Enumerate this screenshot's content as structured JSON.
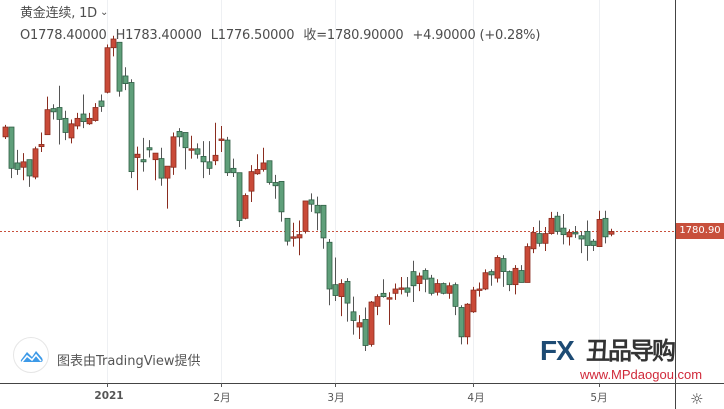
{
  "header": {
    "symbol_title": "黄金连续, 1D",
    "open": "O1778.40000",
    "high": "H1783.40000",
    "low": "L1776.50000",
    "close": "收=1780.90000",
    "change": "+4.90000 (+0.28%)"
  },
  "attribution": "图表由TradingView提供",
  "price_tag": "1780.90",
  "watermark": {
    "brand": "FX168",
    "cn": "丑品导购",
    "url": "www.MPdaogou.com"
  },
  "colors": {
    "up": "#c94a38",
    "up_border": "#8a2c1f",
    "down": "#5f9f7a",
    "down_border": "#2f5e45",
    "last_price_line": "#c8503c",
    "axis": "#555555",
    "grid": "#eef0f3"
  },
  "icons": {
    "settings": "gear-icon",
    "dropdown": "chevron-down-icon",
    "logo": "tradingview-logo-icon"
  },
  "chart_data": {
    "type": "candlestick",
    "title": "黄金连续, 1D",
    "xlabel": "",
    "ylabel": "",
    "ylim": [
      1641.5,
      1993.9
    ],
    "grid": "vertical only at month ticks",
    "up_color_meaning": "red = up, green = down",
    "last_price": 1780.9,
    "x_ticks": [
      {
        "label": "2021",
        "bar": 17
      },
      {
        "label": "2月",
        "bar": 36
      },
      {
        "label": "3月",
        "bar": 55
      },
      {
        "label": "4月",
        "bar": 78
      },
      {
        "label": "5月",
        "bar": 99
      }
    ],
    "candles": [
      [
        1868,
        1879,
        1866,
        1877
      ],
      [
        1877,
        1877,
        1830,
        1839
      ],
      [
        1844,
        1856,
        1833,
        1838
      ],
      [
        1840,
        1853,
        1828,
        1845
      ],
      [
        1847,
        1847,
        1822,
        1832
      ],
      [
        1831,
        1859,
        1829,
        1857
      ],
      [
        1859,
        1872,
        1854,
        1861
      ],
      [
        1870,
        1905,
        1870,
        1893
      ],
      [
        1894,
        1898,
        1884,
        1891
      ],
      [
        1895,
        1915,
        1861,
        1884
      ],
      [
        1885,
        1892,
        1865,
        1872
      ],
      [
        1867,
        1884,
        1862,
        1880
      ],
      [
        1878,
        1890,
        1875,
        1885
      ],
      [
        1889,
        1907,
        1876,
        1882
      ],
      [
        1880,
        1890,
        1879,
        1885
      ],
      [
        1883,
        1899,
        1882,
        1895
      ],
      [
        1901,
        1907,
        1891,
        1896
      ],
      [
        1909,
        1953,
        1908,
        1950
      ],
      [
        1950,
        1961,
        1942,
        1958
      ],
      [
        1955,
        1955,
        1905,
        1910
      ],
      [
        1924,
        1932,
        1911,
        1917
      ],
      [
        1918,
        1921,
        1830,
        1836
      ],
      [
        1849,
        1859,
        1819,
        1852
      ],
      [
        1847,
        1867,
        1836,
        1845
      ],
      [
        1858,
        1865,
        1849,
        1856
      ],
      [
        1847,
        1853,
        1828,
        1853
      ],
      [
        1848,
        1858,
        1823,
        1830
      ],
      [
        1830,
        1841,
        1802,
        1841
      ],
      [
        1840,
        1872,
        1833,
        1868
      ],
      [
        1873,
        1876,
        1859,
        1868
      ],
      [
        1872,
        1872,
        1838,
        1858
      ],
      [
        1857,
        1869,
        1848,
        1857
      ],
      [
        1857,
        1862,
        1848,
        1852
      ],
      [
        1850,
        1864,
        1830,
        1845
      ],
      [
        1845,
        1864,
        1833,
        1839
      ],
      [
        1846,
        1881,
        1842,
        1851
      ],
      [
        1866,
        1878,
        1854,
        1866
      ],
      [
        1865,
        1868,
        1832,
        1835
      ],
      [
        1839,
        1848,
        1831,
        1835
      ],
      [
        1835,
        1835,
        1785,
        1791
      ],
      [
        1793,
        1816,
        1792,
        1814
      ],
      [
        1818,
        1842,
        1808,
        1836
      ],
      [
        1834,
        1852,
        1833,
        1838
      ],
      [
        1838,
        1858,
        1836,
        1844
      ],
      [
        1846,
        1846,
        1824,
        1826
      ],
      [
        1826,
        1833,
        1811,
        1823
      ],
      [
        1827,
        1827,
        1790,
        1799
      ],
      [
        1793,
        1793,
        1768,
        1772
      ],
      [
        1776,
        1789,
        1767,
        1776
      ],
      [
        1775,
        1791,
        1759,
        1778
      ],
      [
        1781,
        1809,
        1779,
        1809
      ],
      [
        1810,
        1816,
        1799,
        1806
      ],
      [
        1805,
        1813,
        1782,
        1798
      ],
      [
        1805,
        1805,
        1765,
        1775
      ],
      [
        1771,
        1774,
        1713,
        1728
      ],
      [
        1732,
        1757,
        1717,
        1722
      ],
      [
        1721,
        1737,
        1703,
        1733
      ],
      [
        1735,
        1738,
        1698,
        1715
      ],
      [
        1707,
        1721,
        1686,
        1699
      ],
      [
        1693,
        1704,
        1682,
        1697
      ],
      [
        1700,
        1711,
        1671,
        1676
      ],
      [
        1677,
        1717,
        1675,
        1716
      ],
      [
        1712,
        1723,
        1704,
        1721
      ],
      [
        1724,
        1737,
        1720,
        1721
      ],
      [
        1720,
        1725,
        1695,
        1720
      ],
      [
        1724,
        1733,
        1718,
        1728
      ],
      [
        1728,
        1739,
        1723,
        1729
      ],
      [
        1729,
        1739,
        1721,
        1725
      ],
      [
        1744,
        1754,
        1716,
        1731
      ],
      [
        1733,
        1743,
        1726,
        1740
      ],
      [
        1745,
        1747,
        1725,
        1737
      ],
      [
        1738,
        1741,
        1722,
        1724
      ],
      [
        1725,
        1737,
        1722,
        1733
      ],
      [
        1733,
        1734,
        1723,
        1724
      ],
      [
        1724,
        1734,
        1719,
        1731
      ],
      [
        1732,
        1734,
        1704,
        1712
      ],
      [
        1711,
        1713,
        1677,
        1684
      ],
      [
        1684,
        1715,
        1677,
        1714
      ],
      [
        1707,
        1730,
        1706,
        1727
      ],
      [
        1728,
        1734,
        1721,
        1728
      ],
      [
        1728,
        1746,
        1727,
        1743
      ],
      [
        1744,
        1746,
        1731,
        1741
      ],
      [
        1738,
        1759,
        1734,
        1757
      ],
      [
        1756,
        1759,
        1730,
        1744
      ],
      [
        1744,
        1745,
        1726,
        1732
      ],
      [
        1732,
        1750,
        1723,
        1747
      ],
      [
        1745,
        1750,
        1734,
        1734
      ],
      [
        1734,
        1770,
        1734,
        1767
      ],
      [
        1765,
        1785,
        1761,
        1780
      ],
      [
        1779,
        1791,
        1767,
        1770
      ],
      [
        1770,
        1785,
        1763,
        1779
      ],
      [
        1779,
        1799,
        1778,
        1793
      ],
      [
        1795,
        1799,
        1778,
        1781
      ],
      [
        1784,
        1797,
        1769,
        1778
      ],
      [
        1776,
        1783,
        1768,
        1780
      ],
      [
        1780,
        1786,
        1775,
        1779
      ],
      [
        1777,
        1781,
        1761,
        1774
      ],
      [
        1781,
        1791,
        1754,
        1768
      ],
      [
        1772,
        1774,
        1763,
        1768
      ],
      [
        1767,
        1800,
        1767,
        1792
      ],
      [
        1793,
        1800,
        1770,
        1776
      ],
      [
        1778.4,
        1783.4,
        1776.5,
        1780.9
      ]
    ]
  }
}
